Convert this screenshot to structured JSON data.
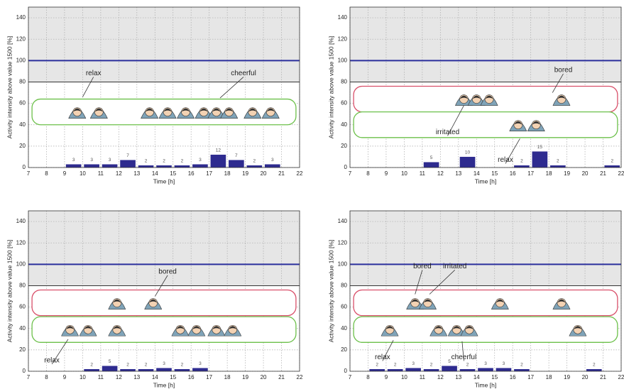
{
  "chart_data": [
    {
      "type": "bar",
      "xlabel": "Time [h]",
      "ylabel": "Activity intensity above value 1500 [%]",
      "x": [
        9.5,
        10.5,
        11.5,
        12.5,
        13.5,
        14.5,
        15.5,
        16.5,
        17.5,
        18.5,
        19.5,
        20.5
      ],
      "values": [
        3,
        3,
        3,
        7,
        2,
        2,
        2,
        3,
        12,
        7,
        2,
        3
      ],
      "color": "#2e2b8f",
      "xlim": [
        7,
        22
      ],
      "ylim": [
        0,
        150
      ],
      "xticks": [
        7,
        8,
        9,
        10,
        11,
        12,
        13,
        14,
        15,
        16,
        17,
        18,
        19,
        20,
        21,
        22
      ],
      "yticks": [
        0,
        20,
        40,
        60,
        80,
        100,
        120,
        140
      ],
      "grid": true,
      "shade_from": 80,
      "ref_line": 100,
      "ref_color": "#2b2f9c",
      "annotations": [
        "relax",
        "cheerful"
      ]
    },
    {
      "type": "bar",
      "xlabel": "Time [h]",
      "ylabel": "Activity intensity above value 1500 [%]",
      "x": [
        11.5,
        13.5,
        16.5,
        17.5,
        18.5,
        21.5
      ],
      "values": [
        5,
        10,
        2,
        15,
        2,
        2
      ],
      "color": "#2e2b8f",
      "xlim": [
        7,
        22
      ],
      "ylim": [
        0,
        150
      ],
      "xticks": [
        7,
        8,
        9,
        10,
        11,
        12,
        13,
        14,
        15,
        16,
        17,
        18,
        19,
        20,
        21,
        22
      ],
      "yticks": [
        0,
        20,
        40,
        60,
        80,
        100,
        120,
        140
      ],
      "grid": true,
      "shade_from": 80,
      "ref_line": 100,
      "ref_color": "#2b2f9c",
      "annotations": [
        "bored",
        "irritated",
        "relax"
      ]
    },
    {
      "type": "bar",
      "xlabel": "Time [h]",
      "ylabel": "Activity intensity above value 1500 [%]",
      "x": [
        10.5,
        11.5,
        12.5,
        13.5,
        14.5,
        15.5,
        16.5
      ],
      "values": [
        2,
        5,
        2,
        2,
        3,
        2,
        3
      ],
      "color": "#2e2b8f",
      "xlim": [
        7,
        22
      ],
      "ylim": [
        0,
        150
      ],
      "xticks": [
        7,
        8,
        9,
        10,
        11,
        12,
        13,
        14,
        15,
        16,
        17,
        18,
        19,
        20,
        21,
        22
      ],
      "yticks": [
        0,
        20,
        40,
        60,
        80,
        100,
        120,
        140
      ],
      "grid": true,
      "shade_from": 80,
      "ref_line": 100,
      "ref_color": "#2b2f9c",
      "annotations": [
        "bored",
        "relax"
      ]
    },
    {
      "type": "bar",
      "xlabel": "Time [h]",
      "ylabel": "Activity intensity above value 1500 [%]",
      "x": [
        8.5,
        9.5,
        10.5,
        11.5,
        12.5,
        13.5,
        14.5,
        15.5,
        16.5,
        20.5
      ],
      "values": [
        2,
        2,
        3,
        2,
        5,
        2,
        3,
        3,
        2,
        2
      ],
      "color": "#2e2b8f",
      "xlim": [
        7,
        22
      ],
      "ylim": [
        0,
        150
      ],
      "xticks": [
        7,
        8,
        9,
        10,
        11,
        12,
        13,
        14,
        15,
        16,
        17,
        18,
        19,
        20,
        21,
        22
      ],
      "yticks": [
        0,
        20,
        40,
        60,
        80,
        100,
        120,
        140
      ],
      "grid": true,
      "shade_from": 80,
      "ref_line": 100,
      "ref_color": "#2b2f9c",
      "annotations": [
        "bored",
        "irritated",
        "relax",
        "cheerful"
      ]
    }
  ]
}
